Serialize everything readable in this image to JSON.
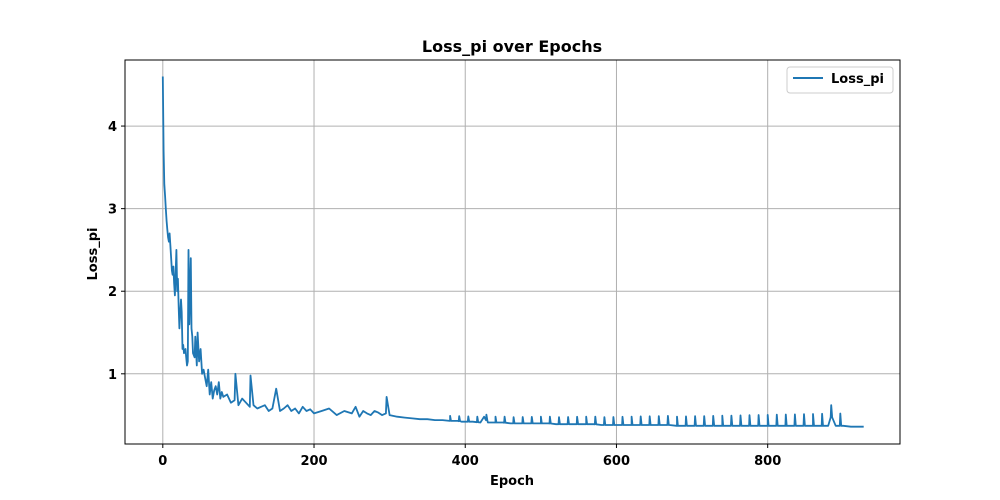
{
  "chart_data": {
    "type": "line",
    "title": "Loss_pi over Epochs",
    "xlabel": "Epoch",
    "ylabel": "Loss_pi",
    "xlim": [
      -50,
      975
    ],
    "ylim": [
      0.15,
      4.8
    ],
    "xticks": [
      0,
      200,
      400,
      600,
      800
    ],
    "yticks": [
      1,
      2,
      3,
      4
    ],
    "grid": true,
    "legend_position": "top-right",
    "series": [
      {
        "name": "Loss_pi",
        "color": "#1f77b4",
        "x": [
          0,
          1,
          2,
          3,
          4,
          5,
          6,
          7,
          8,
          9,
          10,
          12,
          13,
          14,
          15,
          16,
          18,
          19,
          20,
          21,
          22,
          24,
          25,
          26,
          27,
          28,
          30,
          31,
          32,
          33,
          34,
          35,
          37,
          38,
          39,
          40,
          42,
          43,
          45,
          46,
          48,
          50,
          52,
          54,
          56,
          58,
          60,
          62,
          64,
          66,
          68,
          70,
          72,
          74,
          76,
          78,
          80,
          85,
          90,
          95,
          96,
          100,
          105,
          110,
          115,
          116,
          120,
          125,
          130,
          135,
          140,
          145,
          150,
          155,
          160,
          165,
          170,
          175,
          180,
          185,
          190,
          195,
          200,
          210,
          220,
          230,
          240,
          250,
          255,
          260,
          265,
          270,
          275,
          280,
          285,
          290,
          295,
          296,
          300,
          310,
          320,
          330,
          340,
          350,
          360,
          370,
          380,
          390,
          395,
          400,
          410,
          420,
          425,
          430,
          440,
          450,
          460,
          470,
          480,
          490,
          500,
          510,
          520,
          530,
          540,
          545,
          550,
          560,
          570,
          580,
          590,
          600,
          610,
          620,
          630,
          640,
          650,
          660,
          670,
          680,
          690,
          700,
          710,
          720,
          730,
          740,
          750,
          760,
          770,
          780,
          790,
          800,
          810,
          820,
          830,
          840,
          850,
          860,
          870,
          880,
          885,
          890,
          895,
          900,
          910,
          920,
          927
        ],
        "y": [
          4.6,
          3.7,
          3.3,
          3.15,
          3.0,
          2.85,
          2.75,
          2.65,
          2.6,
          2.7,
          2.55,
          2.25,
          2.2,
          2.3,
          2.1,
          1.95,
          2.5,
          2.0,
          2.15,
          1.8,
          1.55,
          1.9,
          1.75,
          1.3,
          1.35,
          1.25,
          1.3,
          1.2,
          1.1,
          1.15,
          2.5,
          1.6,
          2.4,
          1.55,
          1.45,
          1.25,
          1.2,
          1.45,
          1.1,
          1.5,
          1.15,
          1.3,
          1.0,
          1.05,
          0.95,
          0.85,
          1.05,
          0.75,
          0.9,
          0.7,
          0.8,
          0.85,
          0.75,
          0.9,
          0.7,
          0.78,
          0.72,
          0.75,
          0.65,
          0.68,
          1.0,
          0.62,
          0.7,
          0.65,
          0.6,
          0.98,
          0.62,
          0.58,
          0.6,
          0.62,
          0.55,
          0.58,
          0.82,
          0.55,
          0.58,
          0.62,
          0.55,
          0.58,
          0.52,
          0.6,
          0.55,
          0.57,
          0.52,
          0.55,
          0.58,
          0.5,
          0.55,
          0.52,
          0.6,
          0.48,
          0.55,
          0.52,
          0.5,
          0.55,
          0.53,
          0.5,
          0.52,
          0.72,
          0.5,
          0.48,
          0.47,
          0.46,
          0.45,
          0.45,
          0.44,
          0.44,
          0.43,
          0.43,
          0.42,
          0.42,
          0.42,
          0.41,
          0.48,
          0.41,
          0.41,
          0.41,
          0.4,
          0.4,
          0.4,
          0.4,
          0.4,
          0.4,
          0.39,
          0.39,
          0.39,
          0.39,
          0.39,
          0.39,
          0.39,
          0.38,
          0.38,
          0.38,
          0.38,
          0.38,
          0.38,
          0.38,
          0.38,
          0.38,
          0.38,
          0.37,
          0.37,
          0.37,
          0.37,
          0.37,
          0.37,
          0.37,
          0.37,
          0.37,
          0.37,
          0.37,
          0.37,
          0.37,
          0.37,
          0.37,
          0.37,
          0.37,
          0.37,
          0.37,
          0.37,
          0.37,
          0.5,
          0.37,
          0.37,
          0.37,
          0.36,
          0.36,
          0.36
        ]
      }
    ],
    "spikes": {
      "x_start": 380,
      "x_end": 900,
      "period": 12,
      "height_start": 0.06,
      "height_end": 0.15
    }
  }
}
